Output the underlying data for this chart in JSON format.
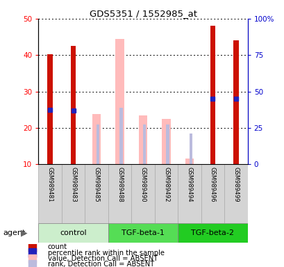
{
  "title": "GDS5351 / 1552985_at",
  "samples": [
    "GSM989481",
    "GSM989483",
    "GSM989485",
    "GSM989488",
    "GSM989490",
    "GSM989492",
    "GSM989494",
    "GSM989496",
    "GSM989499"
  ],
  "groups": [
    {
      "label": "control",
      "color_sample": "#d8f0d8",
      "color_group": "#aaeaaa",
      "samples": [
        0,
        1,
        2
      ]
    },
    {
      "label": "TGF-beta-1",
      "color_sample": "#d8f0d8",
      "color_group": "#44dd44",
      "samples": [
        3,
        4,
        5
      ]
    },
    {
      "label": "TGF-beta-2",
      "color_sample": "#d8f0d8",
      "color_group": "#22cc22",
      "samples": [
        6,
        7,
        8
      ]
    }
  ],
  "count_values": [
    40.2,
    42.5,
    null,
    null,
    null,
    null,
    null,
    48.0,
    44.0
  ],
  "percentile_values": [
    25.0,
    24.8,
    null,
    null,
    null,
    null,
    null,
    28.0,
    28.0
  ],
  "absent_value": [
    null,
    null,
    23.8,
    44.5,
    23.5,
    22.5,
    11.5,
    null,
    null
  ],
  "absent_rank": [
    null,
    null,
    21.0,
    25.5,
    21.0,
    21.0,
    18.5,
    null,
    null
  ],
  "ylim_left": [
    10,
    50
  ],
  "ylim_right": [
    0,
    100
  ],
  "yticks_left": [
    10,
    20,
    30,
    40,
    50
  ],
  "yticks_right": [
    0,
    25,
    50,
    75,
    100
  ],
  "count_color": "#cc1100",
  "percentile_color": "#2222bb",
  "absent_value_color": "#ffbbbb",
  "absent_rank_color": "#bbbbdd",
  "legend_items": [
    {
      "label": "count",
      "color": "#cc1100"
    },
    {
      "label": "percentile rank within the sample",
      "color": "#2222bb"
    },
    {
      "label": "value, Detection Call = ABSENT",
      "color": "#ffbbbb"
    },
    {
      "label": "rank, Detection Call = ABSENT",
      "color": "#bbbbdd"
    }
  ]
}
